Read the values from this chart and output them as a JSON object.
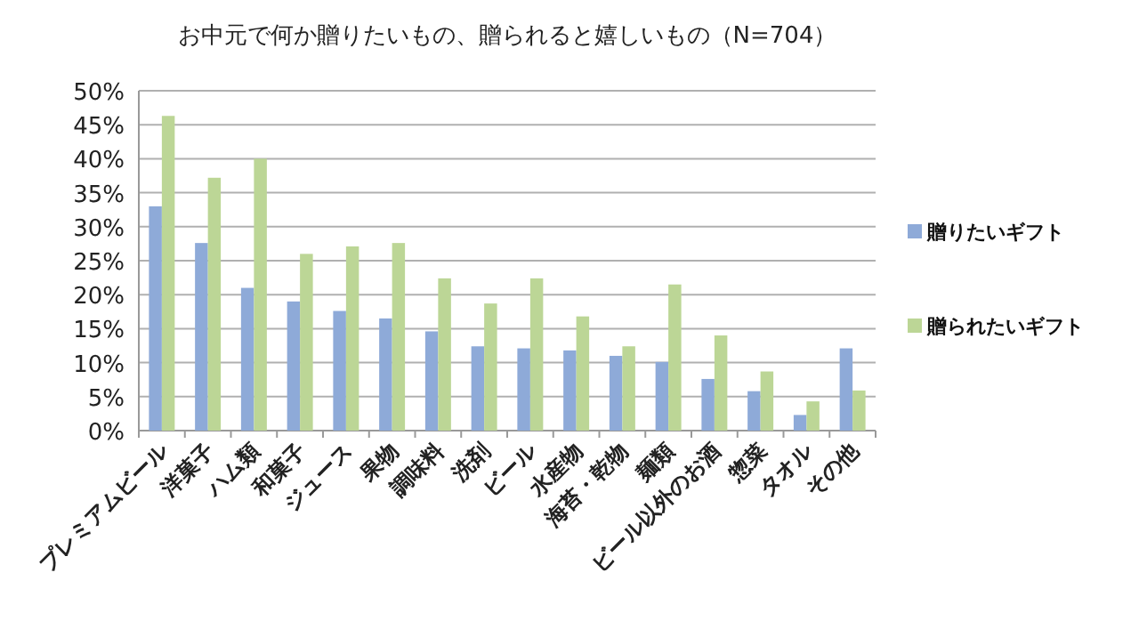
{
  "chart_data": {
    "type": "bar",
    "title": "お中元で何か贈りたいもの、贈られると嬉しいもの（N=704）",
    "categories": [
      "プレミアムビール",
      "洋菓子",
      "ハム類",
      "和菓子",
      "ジュース",
      "果物",
      "調味料",
      "洗剤",
      "ビール",
      "水産物",
      "海苔・乾物",
      "麺類",
      "ビール以外のお酒",
      "惣菜",
      "タオル",
      "その他"
    ],
    "series": [
      {
        "name": "贈りたいギフト",
        "color": "#8eaad8",
        "values": [
          33,
          27.6,
          21,
          19,
          17.6,
          16.5,
          14.6,
          12.4,
          12.1,
          11.8,
          11,
          10.1,
          7.6,
          5.8,
          2.3,
          12.1
        ]
      },
      {
        "name": "贈られたいギフト",
        "color": "#bcd696",
        "values": [
          46.3,
          37.2,
          40,
          26,
          27.1,
          27.6,
          22.4,
          18.7,
          22.4,
          16.8,
          12.4,
          21.5,
          14,
          8.7,
          4.3,
          5.9
        ]
      }
    ],
    "ylim": [
      0,
      50
    ],
    "yticks": [
      {
        "value": 0,
        "label": "0%"
      },
      {
        "value": 5,
        "label": "5%"
      },
      {
        "value": 10,
        "label": "10%"
      },
      {
        "value": 15,
        "label": "15%"
      },
      {
        "value": 20,
        "label": "20%"
      },
      {
        "value": 25,
        "label": "25%"
      },
      {
        "value": 30,
        "label": "30%"
      },
      {
        "value": 35,
        "label": "35%"
      },
      {
        "value": 40,
        "label": "40%"
      },
      {
        "value": 45,
        "label": "45%"
      },
      {
        "value": 50,
        "label": "50%"
      }
    ],
    "grid": "y",
    "legend": "right"
  }
}
